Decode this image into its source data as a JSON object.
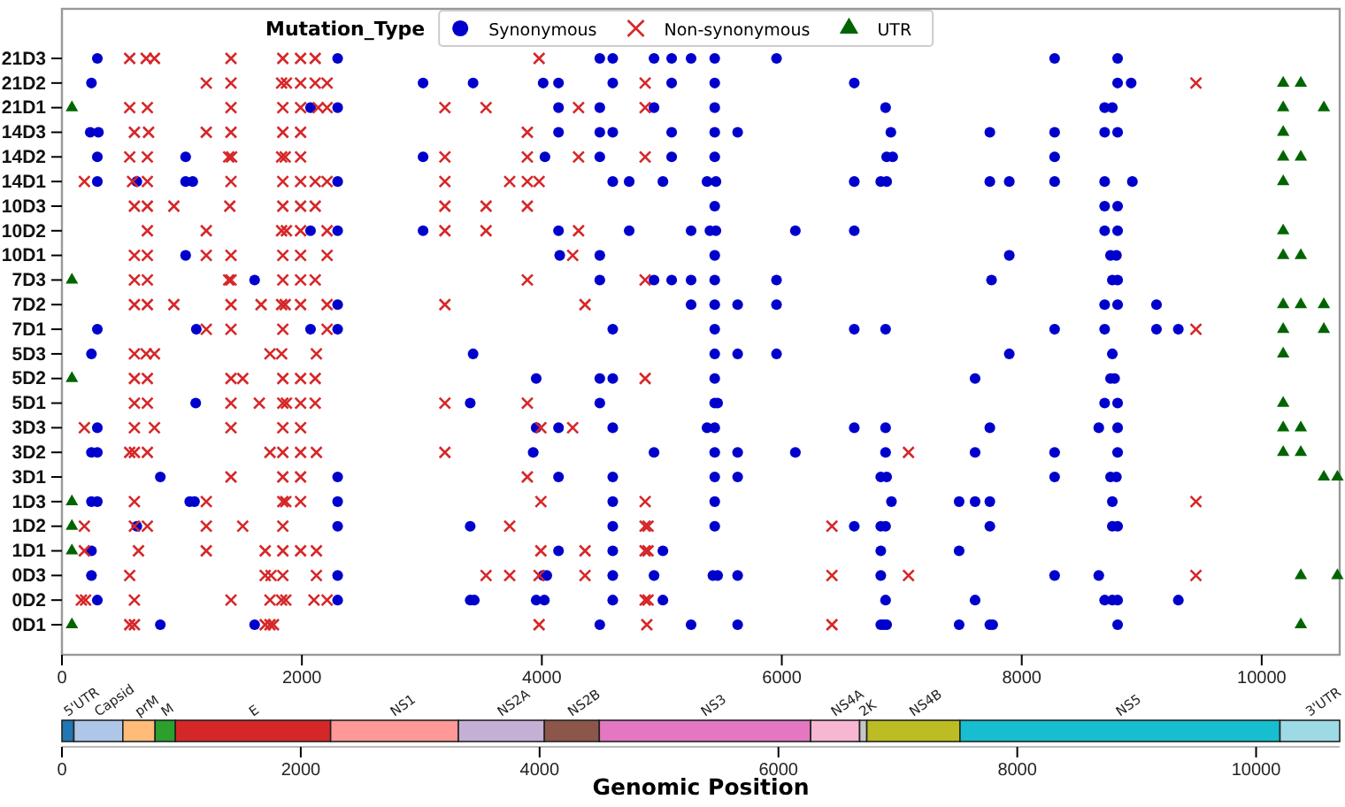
{
  "chart_data": [
    {
      "type": "scatter",
      "orientation": "horizontal",
      "legend_title": "Mutation_Type",
      "legend": "top",
      "xlim": [
        0,
        10650
      ],
      "xticks": [
        0,
        2000,
        4000,
        6000,
        8000,
        10000
      ],
      "categories": [
        "21D3",
        "21D2",
        "21D1",
        "14D3",
        "14D2",
        "14D1",
        "10D3",
        "10D2",
        "10D1",
        "7D3",
        "7D2",
        "7D1",
        "5D3",
        "5D2",
        "5D1",
        "3D3",
        "3D2",
        "3D1",
        "1D3",
        "1D2",
        "1D1",
        "0D3",
        "0D2",
        "0D1"
      ],
      "series": [
        {
          "name": "Synonymous",
          "color": "#0000cc",
          "marker": "circle",
          "values": [
            295,
            2298,
            4483,
            4591,
            4935,
            5082,
            5244,
            5441,
            5956,
            8274,
            8799,
            246,
            3010,
            3427,
            4011,
            4139,
            4591,
            5082,
            5441,
            6604,
            8799,
            8912,
            2072,
            2298,
            4139,
            4483,
            4935,
            5441,
            6865,
            8691,
            8755,
            236,
            304,
            4139,
            4483,
            4591,
            5082,
            5441,
            5632,
            6909,
            7734,
            8274,
            8691,
            8799,
            295,
            1031,
            3010,
            4026,
            4483,
            5082,
            5441,
            6874,
            6924,
            8274,
            295,
            624,
            1031,
            1090,
            2298,
            4591,
            4728,
            5009,
            5377,
            5451,
            6604,
            6825,
            6874,
            7734,
            7896,
            8274,
            8691,
            8922,
            5441,
            8691,
            8799,
            2072,
            2298,
            3010,
            4139,
            4728,
            5244,
            5401,
            5451,
            6113,
            6604,
            8691,
            8799,
            1031,
            4149,
            4483,
            5441,
            7896,
            8740,
            8789,
            1606,
            4483,
            4935,
            5082,
            5244,
            5441,
            5956,
            7748,
            8755,
            8799,
            2298,
            5244,
            5441,
            5632,
            5956,
            8691,
            8799,
            9123,
            295,
            1120,
            2072,
            2298,
            4591,
            5441,
            6604,
            6865,
            8274,
            8691,
            9123,
            9305,
            246,
            3427,
            5441,
            5632,
            5956,
            7896,
            8755,
            3953,
            4483,
            4591,
            5441,
            7611,
            8740,
            8774,
            1115,
            3403,
            4483,
            5441,
            5465,
            8691,
            8799,
            295,
            3953,
            4139,
            4591,
            5377,
            5441,
            6604,
            6865,
            7734,
            8642,
            8799,
            246,
            295,
            3928,
            4935,
            5441,
            5632,
            6113,
            6865,
            7611,
            8274,
            8799,
            820,
            2298,
            4139,
            4591,
            5441,
            5632,
            6825,
            6874,
            8274,
            8740,
            8789,
            246,
            295,
            1065,
            1105,
            2298,
            4591,
            5441,
            6914,
            7478,
            7611,
            7734,
            8755,
            624,
            2298,
            3403,
            4591,
            5441,
            6604,
            6825,
            6865,
            7734,
            8755,
            8799,
            246,
            4139,
            4591,
            5009,
            6825,
            7478,
            246,
            2298,
            4011,
            4041,
            4591,
            4935,
            5426,
            5465,
            5632,
            6825,
            8274,
            8642,
            295,
            2298,
            3403,
            3437,
            3953,
            4021,
            4591,
            5009,
            6865,
            7611,
            8691,
            8755,
            8799,
            9305,
            820,
            1606,
            4483,
            5244,
            5632,
            6825,
            6850,
            6874,
            7478,
            7734,
            7758,
            8799
          ],
          "x": [
            "21D3",
            "21D3",
            "21D3",
            "21D3",
            "21D3",
            "21D3",
            "21D3",
            "21D3",
            "21D3",
            "21D3",
            "21D3",
            "21D2",
            "21D2",
            "21D2",
            "21D2",
            "21D2",
            "21D2",
            "21D2",
            "21D2",
            "21D2",
            "21D2",
            "21D2",
            "21D1",
            "21D1",
            "21D1",
            "21D1",
            "21D1",
            "21D1",
            "21D1",
            "21D1",
            "21D1",
            "14D3",
            "14D3",
            "14D3",
            "14D3",
            "14D3",
            "14D3",
            "14D3",
            "14D3",
            "14D3",
            "14D3",
            "14D3",
            "14D3",
            "14D3",
            "14D2",
            "14D2",
            "14D2",
            "14D2",
            "14D2",
            "14D2",
            "14D2",
            "14D2",
            "14D2",
            "14D2",
            "14D1",
            "14D1",
            "14D1",
            "14D1",
            "14D1",
            "14D1",
            "14D1",
            "14D1",
            "14D1",
            "14D1",
            "14D1",
            "14D1",
            "14D1",
            "14D1",
            "14D1",
            "14D1",
            "14D1",
            "14D1",
            "10D3",
            "10D3",
            "10D3",
            "10D2",
            "10D2",
            "10D2",
            "10D2",
            "10D2",
            "10D2",
            "10D2",
            "10D2",
            "10D2",
            "10D2",
            "10D2",
            "10D2",
            "10D1",
            "10D1",
            "10D1",
            "10D1",
            "10D1",
            "10D1",
            "10D1",
            "7D3",
            "7D3",
            "7D3",
            "7D3",
            "7D3",
            "7D3",
            "7D3",
            "7D3",
            "7D3",
            "7D3",
            "7D2",
            "7D2",
            "7D2",
            "7D2",
            "7D2",
            "7D2",
            "7D2",
            "7D2",
            "7D1",
            "7D1",
            "7D1",
            "7D1",
            "7D1",
            "7D1",
            "7D1",
            "7D1",
            "7D1",
            "7D1",
            "7D1",
            "7D1",
            "5D3",
            "5D3",
            "5D3",
            "5D3",
            "5D3",
            "5D3",
            "5D3",
            "5D2",
            "5D2",
            "5D2",
            "5D2",
            "5D2",
            "5D2",
            "5D2",
            "5D1",
            "5D1",
            "5D1",
            "5D1",
            "5D1",
            "5D1",
            "5D1",
            "3D3",
            "3D3",
            "3D3",
            "3D3",
            "3D3",
            "3D3",
            "3D3",
            "3D3",
            "3D3",
            "3D3",
            "3D3",
            "3D2",
            "3D2",
            "3D2",
            "3D2",
            "3D2",
            "3D2",
            "3D2",
            "3D2",
            "3D2",
            "3D2",
            "3D2",
            "3D1",
            "3D1",
            "3D1",
            "3D1",
            "3D1",
            "3D1",
            "3D1",
            "3D1",
            "3D1",
            "3D1",
            "3D1",
            "1D3",
            "1D3",
            "1D3",
            "1D3",
            "1D3",
            "1D3",
            "1D3",
            "1D3",
            "1D3",
            "1D3",
            "1D3",
            "1D3",
            "1D2",
            "1D2",
            "1D2",
            "1D2",
            "1D2",
            "1D2",
            "1D2",
            "1D2",
            "1D2",
            "1D2",
            "1D2",
            "1D1",
            "1D1",
            "1D1",
            "1D1",
            "1D1",
            "1D1",
            "0D3",
            "0D3",
            "0D3",
            "0D3",
            "0D3",
            "0D3",
            "0D3",
            "0D3",
            "0D3",
            "0D3",
            "0D3",
            "0D3",
            "0D2",
            "0D2",
            "0D2",
            "0D2",
            "0D2",
            "0D2",
            "0D2",
            "0D2",
            "0D2",
            "0D2",
            "0D2",
            "0D2",
            "0D2",
            "0D2",
            "0D1",
            "0D1",
            "0D1",
            "0D1",
            "0D1",
            "0D1",
            "0D1",
            "0D1",
            "0D1",
            "0D1",
            "0D1",
            "0D1"
          ]
        },
        {
          "name": "Non-synonymous",
          "color": "#d62728",
          "marker": "cross",
          "values": [
            565,
            702,
            771,
            1409,
            1841,
            1989,
            2111,
            3977,
            1203,
            1409,
            1831,
            1871,
            1989,
            2111,
            2210,
            4861,
            9452,
            565,
            712,
            1409,
            1841,
            1989,
            2136,
            2210,
            3192,
            3535,
            4306,
            4861,
            604,
            722,
            1203,
            1409,
            1841,
            1989,
            3879,
            565,
            712,
            1390,
            1414,
            1831,
            1861,
            1989,
            3192,
            3879,
            4306,
            4861,
            187,
            589,
            712,
            1409,
            1841,
            1989,
            2111,
            2210,
            3192,
            3732,
            3879,
            3977,
            604,
            712,
            933,
            1399,
            1841,
            1989,
            2111,
            3192,
            3535,
            3879,
            712,
            1203,
            1831,
            1871,
            1989,
            2210,
            3192,
            3535,
            4306,
            604,
            712,
            1203,
            1409,
            1841,
            1989,
            2210,
            4257,
            604,
            712,
            1390,
            1409,
            1841,
            1989,
            2111,
            3879,
            4861,
            604,
            712,
            933,
            1409,
            1660,
            1831,
            1861,
            1989,
            2210,
            3192,
            4360,
            1203,
            1409,
            1841,
            2210,
            9452,
            604,
            702,
            771,
            1734,
            1831,
            2121,
            604,
            712,
            1409,
            1507,
            1841,
            1989,
            2111,
            4861,
            604,
            712,
            1409,
            1645,
            1841,
            1871,
            1989,
            2111,
            3192,
            3879,
            187,
            604,
            771,
            1409,
            1841,
            1989,
            3992,
            4257,
            565,
            604,
            712,
            1734,
            1841,
            1989,
            2121,
            3192,
            7056,
            1409,
            1841,
            1989,
            3879,
            604,
            1203,
            1841,
            1866,
            1989,
            3992,
            4861,
            9452,
            187,
            604,
            712,
            1203,
            1507,
            1841,
            3732,
            4861,
            4885,
            6418,
            187,
            638,
            1203,
            1694,
            1841,
            1989,
            2121,
            3992,
            4360,
            4861,
            4885,
            565,
            1694,
            1743,
            1841,
            2121,
            3535,
            3732,
            3977,
            4360,
            6418,
            7056,
            9452,
            162,
            197,
            604,
            1409,
            1734,
            1831,
            1866,
            2101,
            2210,
            4861,
            4885,
            565,
            604,
            1694,
            1734,
            1763,
            3977,
            4875,
            6418
          ],
          "x": [
            "21D3",
            "21D3",
            "21D3",
            "21D3",
            "21D3",
            "21D3",
            "21D3",
            "21D3",
            "21D2",
            "21D2",
            "21D2",
            "21D2",
            "21D2",
            "21D2",
            "21D2",
            "21D2",
            "21D2",
            "21D1",
            "21D1",
            "21D1",
            "21D1",
            "21D1",
            "21D1",
            "21D1",
            "21D1",
            "21D1",
            "21D1",
            "21D1",
            "14D3",
            "14D3",
            "14D3",
            "14D3",
            "14D3",
            "14D3",
            "14D3",
            "14D2",
            "14D2",
            "14D2",
            "14D2",
            "14D2",
            "14D2",
            "14D2",
            "14D2",
            "14D2",
            "14D2",
            "14D2",
            "14D1",
            "14D1",
            "14D1",
            "14D1",
            "14D1",
            "14D1",
            "14D1",
            "14D1",
            "14D1",
            "14D1",
            "14D1",
            "14D1",
            "10D3",
            "10D3",
            "10D3",
            "10D3",
            "10D3",
            "10D3",
            "10D3",
            "10D3",
            "10D3",
            "10D3",
            "10D2",
            "10D2",
            "10D2",
            "10D2",
            "10D2",
            "10D2",
            "10D2",
            "10D2",
            "10D2",
            "10D1",
            "10D1",
            "10D1",
            "10D1",
            "10D1",
            "10D1",
            "10D1",
            "10D1",
            "7D3",
            "7D3",
            "7D3",
            "7D3",
            "7D3",
            "7D3",
            "7D3",
            "7D3",
            "7D3",
            "7D2",
            "7D2",
            "7D2",
            "7D2",
            "7D2",
            "7D2",
            "7D2",
            "7D2",
            "7D2",
            "7D2",
            "7D2",
            "7D1",
            "7D1",
            "7D1",
            "7D1",
            "7D1",
            "5D3",
            "5D3",
            "5D3",
            "5D3",
            "5D3",
            "5D3",
            "5D2",
            "5D2",
            "5D2",
            "5D2",
            "5D2",
            "5D2",
            "5D2",
            "5D2",
            "5D1",
            "5D1",
            "5D1",
            "5D1",
            "5D1",
            "5D1",
            "5D1",
            "5D1",
            "5D1",
            "5D1",
            "3D3",
            "3D3",
            "3D3",
            "3D3",
            "3D3",
            "3D3",
            "3D3",
            "3D3",
            "3D2",
            "3D2",
            "3D2",
            "3D2",
            "3D2",
            "3D2",
            "3D2",
            "3D2",
            "3D2",
            "3D1",
            "3D1",
            "3D1",
            "3D1",
            "1D3",
            "1D3",
            "1D3",
            "1D3",
            "1D3",
            "1D3",
            "1D3",
            "1D3",
            "1D2",
            "1D2",
            "1D2",
            "1D2",
            "1D2",
            "1D2",
            "1D2",
            "1D2",
            "1D2",
            "1D2",
            "1D1",
            "1D1",
            "1D1",
            "1D1",
            "1D1",
            "1D1",
            "1D1",
            "1D1",
            "1D1",
            "1D1",
            "1D1",
            "0D3",
            "0D3",
            "0D3",
            "0D3",
            "0D3",
            "0D3",
            "0D3",
            "0D3",
            "0D3",
            "0D3",
            "0D3",
            "0D3",
            "0D2",
            "0D2",
            "0D2",
            "0D2",
            "0D2",
            "0D2",
            "0D2",
            "0D2",
            "0D2",
            "0D2",
            "0D2",
            "0D1",
            "0D1",
            "0D1",
            "0D1",
            "0D1",
            "0D1",
            "0D1",
            "0D1"
          ]
        },
        {
          "name": "UTR",
          "color": "#006400",
          "marker": "triangle",
          "values": [
            10179,
            10326,
            83,
            10179,
            10518,
            10179,
            10179,
            10326,
            10179,
            10179,
            10179,
            10326,
            83,
            10179,
            10326,
            10518,
            10179,
            10518,
            10179,
            83,
            10179,
            10179,
            10326,
            10179,
            10326,
            10518,
            10631,
            83,
            83,
            83,
            10326,
            10631,
            83,
            10326
          ],
          "x": [
            "21D2",
            "21D2",
            "21D1",
            "21D1",
            "21D1",
            "14D3",
            "14D2",
            "14D2",
            "14D1",
            "10D2",
            "10D1",
            "10D1",
            "7D3",
            "7D2",
            "7D2",
            "7D2",
            "7D1",
            "7D1",
            "5D3",
            "5D2",
            "5D1",
            "3D3",
            "3D3",
            "3D2",
            "3D2",
            "3D1",
            "3D1",
            "1D3",
            "1D2",
            "1D1",
            "0D3",
            "0D3",
            "0D1",
            "0D1"
          ]
        }
      ]
    },
    {
      "type": "bar",
      "orientation": "horizontal",
      "stacked": true,
      "tick_labels": "x",
      "categories": [
        null
      ],
      "xlim": [
        0,
        10700
      ],
      "xticks": [
        0,
        2000,
        4000,
        6000,
        8000,
        10000
      ],
      "xlabel": "Genomic Position",
      "series": [
        {
          "name": "5'UTR",
          "color": "#1f77b4",
          "values": [
            100
          ]
        },
        {
          "name": "Capsid",
          "color": "#aec7e8",
          "values": [
            410
          ]
        },
        {
          "name": "prM",
          "color": "#ffbb78",
          "values": [
            270
          ]
        },
        {
          "name": "M",
          "color": "#2ca02c",
          "values": [
            170
          ]
        },
        {
          "name": "E",
          "color": "#d62728",
          "values": [
            1300
          ]
        },
        {
          "name": "NS1",
          "color": "#ff9896",
          "values": [
            1070
          ]
        },
        {
          "name": "NS2A",
          "color": "#c5b0d5",
          "values": [
            720
          ]
        },
        {
          "name": "NS2B",
          "color": "#8c564b",
          "values": [
            460
          ]
        },
        {
          "name": "NS3",
          "color": "#e377c2",
          "values": [
            1770
          ]
        },
        {
          "name": "NS4A",
          "color": "#f7b6d2",
          "values": [
            410
          ]
        },
        {
          "name": "2K",
          "color": "#c7c7c7",
          "values": [
            60
          ]
        },
        {
          "name": "NS4B",
          "color": "#bcbd22",
          "values": [
            780
          ]
        },
        {
          "name": "NS5",
          "color": "#17becf",
          "values": [
            2680
          ]
        },
        {
          "name": "3'UTR",
          "color": "#9edae5",
          "values": [
            500
          ]
        }
      ]
    }
  ]
}
